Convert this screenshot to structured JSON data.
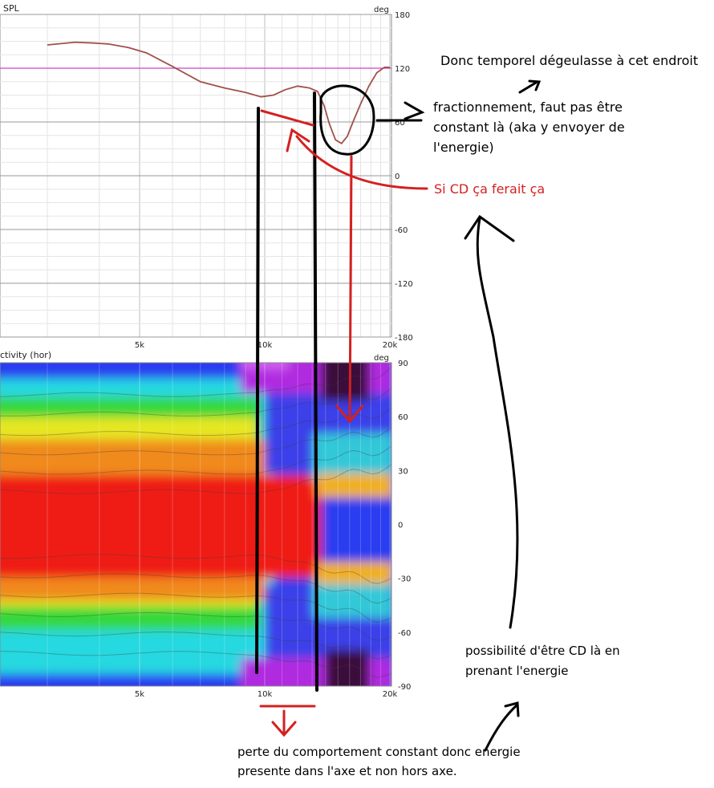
{
  "chart_data": [
    {
      "type": "line",
      "title": "SPL",
      "y_unit": "deg",
      "x_ticks": [
        "5k",
        "10k",
        "20k"
      ],
      "y_ticks": [
        180,
        120,
        60,
        0,
        -60,
        -120,
        -180
      ],
      "ylim": [
        -180,
        180
      ],
      "grid": true,
      "reference_line_y": 120,
      "series": [
        {
          "x": [
            3000,
            3500,
            3900,
            4200,
            4700,
            5200,
            6000,
            7000,
            8000,
            9000,
            9800,
            10500,
            11200,
            12000,
            12800,
            13400,
            13900,
            14300,
            14800,
            15300,
            15800,
            16300,
            17000,
            17800,
            18600,
            19400,
            20000
          ],
          "y": [
            146,
            149,
            148,
            147,
            143,
            137,
            122,
            105,
            98,
            93,
            88,
            90,
            96,
            100,
            98,
            94,
            78,
            58,
            40,
            36,
            44,
            60,
            80,
            100,
            115,
            121,
            121
          ]
        }
      ]
    },
    {
      "type": "heatmap",
      "title": "ctivity (hor)",
      "y_unit": "deg",
      "x_ticks": [
        "5k",
        "10k",
        "20k"
      ],
      "y_ticks": [
        90,
        60,
        30,
        0,
        -30,
        -60,
        -90
      ],
      "ylim": [
        -90,
        90
      ]
    }
  ],
  "annotations": {
    "temporel": "Donc temporel dégeulasse à cet endroit",
    "fractionnement_line1": "fractionnement, faut pas être",
    "fractionnement_line2": "constant là (aka y envoyer de",
    "fractionnement_line3": "l'energie)",
    "si_cd": "Si CD ça ferait ça",
    "possibilite_line1": "possibilité d'être CD là en",
    "possibilite_line2": "prenant l'energie",
    "perte_line1": "perte du comportement constant donc energie",
    "perte_line2": "presente dans l'axe et non hors axe."
  },
  "colors": {
    "phase_curve": "#a0504a",
    "reference_line": "#cc44cc",
    "annotation_red": "#d42020",
    "annotation_black": "#000000"
  }
}
